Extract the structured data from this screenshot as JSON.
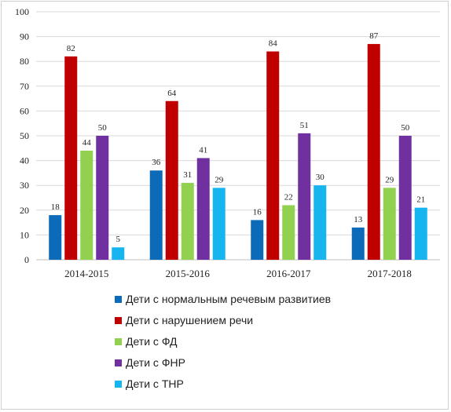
{
  "colors": {
    "background": "#ffffff",
    "grid": "#d9d9d9",
    "axis": "#bfbfbf",
    "text": "#222222"
  },
  "chart_data": {
    "type": "bar",
    "title": "",
    "xlabel": "",
    "ylabel": "",
    "categories": [
      "2014-2015",
      "2015-2016",
      "2016-2017",
      "2017-2018"
    ],
    "ylim": [
      0,
      100
    ],
    "yticks": [
      0,
      10,
      20,
      30,
      40,
      50,
      60,
      70,
      80,
      90,
      100
    ],
    "grid": true,
    "legend_position": "bottom",
    "series": [
      {
        "name": "Дети с нормальным речевым развитиев",
        "color": "#0b6bb8",
        "values": [
          18,
          36,
          16,
          13
        ]
      },
      {
        "name": "Дети с нарушением речи",
        "color": "#c00000",
        "values": [
          82,
          64,
          84,
          87
        ]
      },
      {
        "name": "Дети с ФД",
        "color": "#92d050",
        "values": [
          44,
          31,
          22,
          29
        ]
      },
      {
        "name": "Дети с ФНР",
        "color": "#7030a0",
        "values": [
          50,
          41,
          51,
          50
        ]
      },
      {
        "name": "Дети с ТНР",
        "color": "#16b5f0",
        "values": [
          5,
          29,
          30,
          21
        ]
      }
    ]
  }
}
